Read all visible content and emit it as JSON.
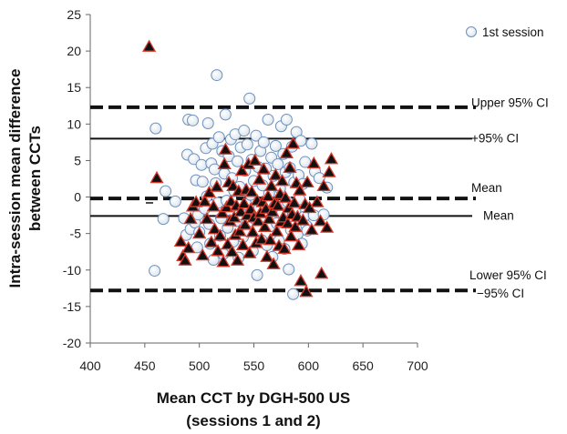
{
  "chart_data": {
    "type": "scatter",
    "xlabel": [
      "Mean CCT by DGH-500 US",
      "(sessions 1 and 2)"
    ],
    "ylabel": [
      "Intra-session mean difference",
      "between CCTs"
    ],
    "xlim": [
      400,
      700
    ],
    "ylim": [
      -20,
      25
    ],
    "x_ticks": [
      400,
      450,
      500,
      550,
      600,
      650,
      700
    ],
    "y_ticks": [
      -20,
      -15,
      -10,
      -5,
      0,
      5,
      10,
      15,
      20,
      25
    ],
    "grid": false,
    "legend": {
      "position": "top-right",
      "entries": [
        "1st session"
      ]
    },
    "reference_lines": [
      {
        "label": "Upper 95% CI",
        "y": 12.3,
        "style": "dashed"
      },
      {
        "label": "+95% CI",
        "y": 8.0,
        "style": "solid"
      },
      {
        "label": "Mean",
        "y": -0.2,
        "style": "dashed"
      },
      {
        "label": "Mean",
        "y": -2.6,
        "style": "solid"
      },
      {
        "label": "Lower 95% CI",
        "y": -12.8,
        "style": "dashed"
      },
      {
        "label": "−95% CI",
        "y": -12.8,
        "style": "solid"
      }
    ],
    "series": [
      {
        "name": "1st session",
        "marker": "circle",
        "color": "#dde7ee",
        "edge": "#6d8fbf",
        "points": [
          [
            460,
            9.4
          ],
          [
            459,
            -10.1
          ],
          [
            467,
            -3
          ],
          [
            469,
            0.8
          ],
          [
            478,
            -0.6
          ],
          [
            486,
            -2.9
          ],
          [
            488,
            -5.2
          ],
          [
            489,
            5.8
          ],
          [
            490,
            10.6
          ],
          [
            492,
            -4.4
          ],
          [
            494,
            10.5
          ],
          [
            495,
            5.2
          ],
          [
            496,
            -3.5
          ],
          [
            497,
            2.3
          ],
          [
            498,
            -6.9
          ],
          [
            499,
            -2.4
          ],
          [
            500,
            -4.8
          ],
          [
            502,
            4.4
          ],
          [
            503,
            2.1
          ],
          [
            505,
            -1.6
          ],
          [
            506,
            6.7
          ],
          [
            507,
            0.1
          ],
          [
            508,
            10.1
          ],
          [
            509,
            -3.7
          ],
          [
            510,
            -6.4
          ],
          [
            511,
            4.6
          ],
          [
            512,
            7.3
          ],
          [
            513,
            -8.6
          ],
          [
            514,
            3.8
          ],
          [
            515,
            1.9
          ],
          [
            516,
            16.7
          ],
          [
            517,
            -0.8
          ],
          [
            518,
            8.2
          ],
          [
            519,
            -5.3
          ],
          [
            520,
            -2.9
          ],
          [
            521,
            6.3
          ],
          [
            522,
            -7.8
          ],
          [
            523,
            3.2
          ],
          [
            524,
            11.3
          ],
          [
            525,
            -0.5
          ],
          [
            526,
            -4.2
          ],
          [
            527,
            5.6
          ],
          [
            528,
            -1.8
          ],
          [
            529,
            7.9
          ],
          [
            530,
            2.6
          ],
          [
            531,
            -6.1
          ],
          [
            532,
            0.8
          ],
          [
            533,
            8.6
          ],
          [
            534,
            -3.3
          ],
          [
            535,
            4.9
          ],
          [
            536,
            -8.3
          ],
          [
            537,
            1.4
          ],
          [
            538,
            6.8
          ],
          [
            539,
            -2.4
          ],
          [
            540,
            -5.5
          ],
          [
            541,
            9.1
          ],
          [
            542,
            3.6
          ],
          [
            543,
            -1.0
          ],
          [
            544,
            7.2
          ],
          [
            545,
            -4.7
          ],
          [
            546,
            13.5
          ],
          [
            547,
            0.3
          ],
          [
            548,
            5.1
          ],
          [
            549,
            -7.4
          ],
          [
            550,
            2.2
          ],
          [
            551,
            -3.0
          ],
          [
            552,
            8.4
          ],
          [
            553,
            -10.7
          ],
          [
            554,
            4.1
          ],
          [
            555,
            -1.5
          ],
          [
            556,
            6.3
          ],
          [
            557,
            -5.9
          ],
          [
            558,
            1.6
          ],
          [
            559,
            7.5
          ],
          [
            560,
            -2.7
          ],
          [
            561,
            3.9
          ],
          [
            562,
            -6.6
          ],
          [
            563,
            10.6
          ],
          [
            564,
            0.5
          ],
          [
            565,
            -4.0
          ],
          [
            566,
            5.4
          ],
          [
            567,
            -8.2
          ],
          [
            568,
            2.9
          ],
          [
            569,
            -1.3
          ],
          [
            570,
            7.0
          ],
          [
            571,
            -3.6
          ],
          [
            572,
            4.5
          ],
          [
            573,
            -6.0
          ],
          [
            574,
            1.2
          ],
          [
            575,
            9.7
          ],
          [
            576,
            -2.2
          ],
          [
            577,
            5.9
          ],
          [
            578,
            -7.1
          ],
          [
            579,
            3.4
          ],
          [
            580,
            10.6
          ],
          [
            581,
            -0.7
          ],
          [
            582,
            -9.9
          ],
          [
            583,
            4.0
          ],
          [
            584,
            -4.5
          ],
          [
            585,
            6.9
          ],
          [
            586,
            -13.3
          ],
          [
            587,
            2.0
          ],
          [
            588,
            -1.9
          ],
          [
            589,
            8.9
          ],
          [
            590,
            -5.1
          ],
          [
            591,
            3.0
          ],
          [
            592,
            -0.3
          ],
          [
            593,
            7.7
          ],
          [
            594,
            -6.4
          ],
          [
            595,
            1.8
          ],
          [
            596,
            -2.7
          ],
          [
            597,
            4.8
          ],
          [
            598,
            -3.9
          ],
          [
            599,
            -4.6
          ],
          [
            603,
            7.3
          ],
          [
            605,
            -2.5
          ],
          [
            606,
            3.5
          ],
          [
            610,
            2.6
          ],
          [
            614,
            -2.4
          ],
          [
            617,
            1.3
          ]
        ]
      },
      {
        "name": "",
        "marker": "triangle",
        "color": "#111111",
        "edge": "#d9392b",
        "points": [
          [
            454,
            20.6
          ],
          [
            461,
            2.6
          ],
          [
            483,
            -6.1
          ],
          [
            485,
            -8.1
          ],
          [
            487,
            -8.7
          ],
          [
            490,
            -7.0
          ],
          [
            492,
            -3.0
          ],
          [
            494,
            -1.3
          ],
          [
            497,
            -0.7
          ],
          [
            500,
            -5.0
          ],
          [
            503,
            -8.0
          ],
          [
            505,
            -0.6
          ],
          [
            507,
            -3.0
          ],
          [
            509,
            0.6
          ],
          [
            511,
            -6.2
          ],
          [
            513,
            -1.3
          ],
          [
            514,
            -4.4
          ],
          [
            516,
            1.4
          ],
          [
            517,
            -7.4
          ],
          [
            519,
            -5.3
          ],
          [
            521,
            -2.2
          ],
          [
            522,
            -8.9
          ],
          [
            523,
            4.5
          ],
          [
            524,
            6.5
          ],
          [
            525,
            -1.4
          ],
          [
            526,
            -6.5
          ],
          [
            527,
            2.0
          ],
          [
            528,
            -3.3
          ],
          [
            529,
            -0.6
          ],
          [
            530,
            -7.5
          ],
          [
            531,
            1.5
          ],
          [
            532,
            -2.8
          ],
          [
            533,
            -5.2
          ],
          [
            534,
            -1.2
          ],
          [
            535,
            -8.7
          ],
          [
            536,
            0.8
          ],
          [
            537,
            -4.7
          ],
          [
            538,
            -2.0
          ],
          [
            539,
            3.6
          ],
          [
            540,
            -6.6
          ],
          [
            541,
            -0.9
          ],
          [
            542,
            -3.8
          ],
          [
            543,
            1.0
          ],
          [
            544,
            -2.5
          ],
          [
            545,
            4.5
          ],
          [
            546,
            -7.7
          ],
          [
            547,
            -1.7
          ],
          [
            548,
            0.7
          ],
          [
            549,
            -4.8
          ],
          [
            550,
            -2.8
          ],
          [
            551,
            5.0
          ],
          [
            552,
            -6.3
          ],
          [
            553,
            -0.5
          ],
          [
            554,
            -3.3
          ],
          [
            555,
            2.4
          ],
          [
            556,
            -2.2
          ],
          [
            557,
            -5.8
          ],
          [
            558,
            -0.7
          ],
          [
            559,
            3.8
          ],
          [
            560,
            -4.1
          ],
          [
            561,
            -1.6
          ],
          [
            562,
            -8.2
          ],
          [
            563,
            0.1
          ],
          [
            564,
            -3.0
          ],
          [
            565,
            -5.9
          ],
          [
            566,
            1.5
          ],
          [
            567,
            -2.0
          ],
          [
            568,
            -9.2
          ],
          [
            569,
            -0.9
          ],
          [
            570,
            3.0
          ],
          [
            571,
            -4.7
          ],
          [
            572,
            -1.2
          ],
          [
            573,
            -6.7
          ],
          [
            574,
            0.4
          ],
          [
            575,
            -3.4
          ],
          [
            576,
            2.2
          ],
          [
            577,
            -2.8
          ],
          [
            578,
            -7.1
          ],
          [
            579,
            -0.1
          ],
          [
            580,
            6.0
          ],
          [
            581,
            -3.6
          ],
          [
            582,
            -1.5
          ],
          [
            583,
            4.0
          ],
          [
            584,
            -5.4
          ],
          [
            585,
            -2.4
          ],
          [
            586,
            7.3
          ],
          [
            587,
            -0.8
          ],
          [
            588,
            -4.1
          ],
          [
            589,
            1.9
          ],
          [
            590,
            -2.7
          ],
          [
            591,
            -6.6
          ],
          [
            592,
            0.9
          ],
          [
            593,
            -11.5
          ],
          [
            595,
            -3.2
          ],
          [
            597,
            -1.0
          ],
          [
            599,
            2.0
          ],
          [
            601,
            -1.5
          ],
          [
            603,
            -4.5
          ],
          [
            605,
            4.6
          ],
          [
            608,
            -0.7
          ],
          [
            611,
            -3.3
          ],
          [
            614,
            1.5
          ],
          [
            617,
            -4.2
          ],
          [
            619,
            3.4
          ],
          [
            621,
            5.2
          ],
          [
            612,
            -10.5
          ],
          [
            598,
            -13.0
          ]
        ]
      }
    ]
  }
}
